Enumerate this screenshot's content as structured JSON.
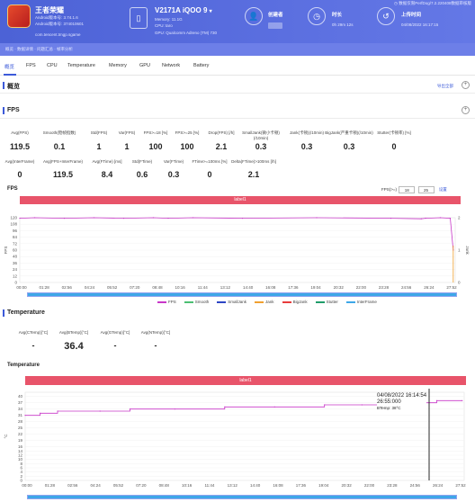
{
  "header": {
    "app_name": "王者荣耀",
    "android_ver1": "Android版本号: 3.74.1.6",
    "android_ver2": "Android版本号: 374010601",
    "package": "com.tencent.tmgp.sgame",
    "device_name": "V2171A iQOO 9",
    "device_badge": "▾",
    "memory": "Memory: 11.1G",
    "cpu": "CPU: taro",
    "gpu": "GPU: Qualcomm Adreno (TM) 730",
    "creator_label": "创建者",
    "duration_label": "时长",
    "duration_value": "0h 29m 12s",
    "upload_label": "上传时间",
    "upload_value": "04/08/2022 16:17:15",
    "top_right": "◷ 数据仅限PerfDog/7.2.220408数据审核版"
  },
  "subnav": {
    "text": "概览 · 数据详情 · 问题汇总 · 帧率分析"
  },
  "tabs": [
    "概览",
    "FPS",
    "CPU",
    "Temperature",
    "Memory",
    "GPU",
    "Network",
    "Battery"
  ],
  "overview": {
    "title": "概览",
    "link": "导出全部"
  },
  "fps": {
    "title": "FPS",
    "stats_row1": [
      {
        "label": "Avg(FPS)",
        "value": "119.5"
      },
      {
        "label": "Smooth(稳帧指数)",
        "value": "0.1"
      },
      {
        "label": "Std(FPS)",
        "value": "1"
      },
      {
        "label": "Var(FPS)",
        "value": "1"
      },
      {
        "label": "FPS>=18 [%]",
        "value": "100"
      },
      {
        "label": "FPS>=25 [%]",
        "value": "100"
      },
      {
        "label": "Drop(FPS) [/h]",
        "value": "2.1"
      },
      {
        "label": "SmallJank(微小卡顿)(/10min)",
        "value": "0.3"
      },
      {
        "label": "Jank(卡顿)(/10min)",
        "value": "0.3"
      },
      {
        "label": "BigJank(严重卡顿)(/10min)",
        "value": "0.3"
      },
      {
        "label": "Stutter(卡顿率) [%]",
        "value": "0"
      }
    ],
    "stats_row2": [
      {
        "label": "Avg(InterFrame)",
        "value": "0"
      },
      {
        "label": "Avg(FPS+InterFrame)",
        "value": "119.5"
      },
      {
        "label": "Avg(FTime) [ms]",
        "value": "8.4"
      },
      {
        "label": "Std(FTime)",
        "value": "0.6"
      },
      {
        "label": "Var(FTime)",
        "value": "0.3"
      },
      {
        "label": "FTime>=100ms [%]",
        "value": "0"
      },
      {
        "label": "Delta(FTime)>100ms [/h]",
        "value": "2.1"
      }
    ],
    "chart_title": "FPS",
    "label_band": "label1",
    "ctrl_label": "FPS(>=)",
    "ctrl_v1": "18",
    "ctrl_v2": "25",
    "ctrl_btn": "设置",
    "ylabel": "FPS",
    "y2label": "Jank",
    "legend": [
      {
        "name": "FPS",
        "color": "#c837c8"
      },
      {
        "name": "Smooth",
        "color": "#4bbf73"
      },
      {
        "name": "SmallJank",
        "color": "#2d46c4"
      },
      {
        "name": "Jank",
        "color": "#f0a030"
      },
      {
        "name": "BigJank",
        "color": "#e83c3c"
      },
      {
        "name": "Stutter",
        "color": "#1f9c6a"
      },
      {
        "name": "InterFrame",
        "color": "#3ea7e8"
      }
    ]
  },
  "temperature": {
    "title": "Temperature",
    "stats": [
      {
        "label": "Avg(CTemp)[°C]",
        "value": "-"
      },
      {
        "label": "Avg(BTemp)[°C]",
        "value": "36.4"
      },
      {
        "label": "Avg(GTemp)[°C]",
        "value": "-"
      },
      {
        "label": "Avg(NTemp)[°C]",
        "value": "-"
      }
    ],
    "chart_title": "Temperature",
    "label_band": "label1",
    "ylabel": "°C",
    "tooltip_date": "04/08/2022 16:14:54",
    "tooltip_time": "26:55:000",
    "tooltip_val": "BTemp: 38°C"
  },
  "chart_data": [
    {
      "type": "line",
      "title": "FPS",
      "xlabel": "",
      "ylabel": "FPS",
      "ylim": [
        0,
        120
      ],
      "yticks": [
        0,
        12,
        24,
        36,
        48,
        60,
        72,
        84,
        96,
        108,
        120
      ],
      "y2ticks": [
        0,
        1,
        2
      ],
      "x_ticks": [
        "00:00",
        "01:28",
        "02:56",
        "04:24",
        "05:52",
        "07:20",
        "08:48",
        "10:16",
        "11:44",
        "13:12",
        "14:40",
        "16:08",
        "17:36",
        "19:04",
        "20:32",
        "22:00",
        "23:28",
        "24:56",
        "26:24",
        "27:52"
      ],
      "series": [
        {
          "name": "FPS",
          "color": "#c837c8",
          "x": [
            0,
            60,
            180,
            300,
            420,
            540,
            600,
            700,
            900,
            1200,
            1500,
            1623,
            1640,
            1700,
            1740,
            1752
          ],
          "values": [
            119,
            120,
            119,
            120,
            119,
            120,
            119,
            120,
            119,
            120,
            119,
            118,
            119,
            120,
            119,
            60
          ]
        }
      ]
    },
    {
      "type": "line",
      "title": "Temperature",
      "xlabel": "",
      "ylabel": "°C",
      "ylim": [
        0,
        42
      ],
      "yticks": [
        0,
        2,
        4,
        6,
        8,
        10,
        12,
        14,
        16,
        19,
        22,
        25,
        28,
        31,
        34,
        37,
        40,
        43
      ],
      "x_ticks": [
        "00:00",
        "01:28",
        "02:56",
        "04:24",
        "05:52",
        "07:20",
        "08:48",
        "10:16",
        "11:44",
        "13:12",
        "14:40",
        "16:08",
        "17:36",
        "19:04",
        "20:32",
        "22:00",
        "23:28",
        "24:56",
        "26:24",
        "27:52"
      ],
      "series": [
        {
          "name": "BTemp",
          "color": "#c837c8",
          "x": [
            0,
            60,
            130,
            300,
            420,
            600,
            800,
            1000,
            1200,
            1350,
            1450,
            1560,
            1650,
            1752
          ],
          "values": [
            31,
            32,
            33,
            33,
            34,
            34,
            35,
            35,
            36,
            36,
            37,
            37,
            38,
            38
          ]
        }
      ]
    }
  ]
}
